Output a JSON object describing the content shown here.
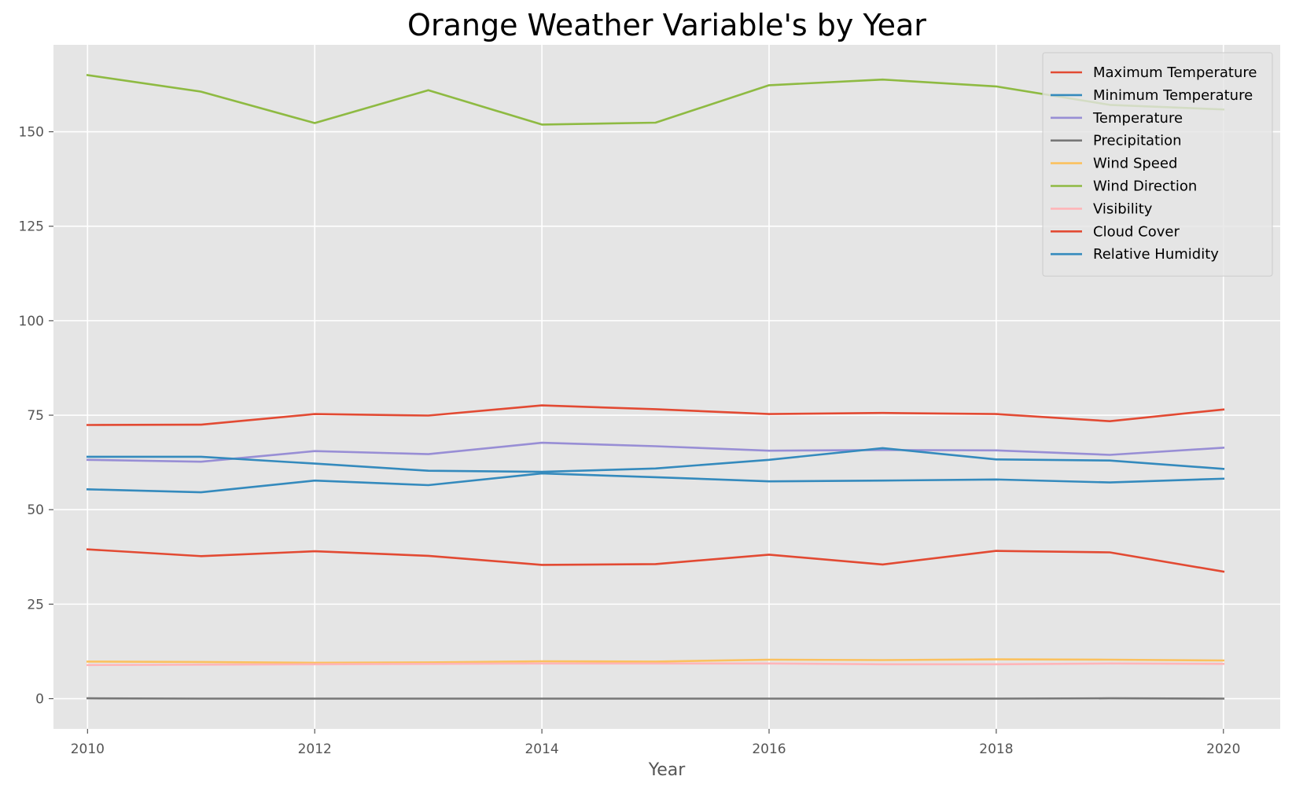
{
  "chart_data": {
    "type": "line",
    "title": "Orange Weather Variable's by Year",
    "xlabel": "Year",
    "ylabel": "",
    "x": [
      2010,
      2011,
      2012,
      2013,
      2014,
      2015,
      2016,
      2017,
      2018,
      2019,
      2020
    ],
    "xticks": [
      "2010",
      "2012",
      "2014",
      "2016",
      "2018",
      "2020"
    ],
    "yticks": [
      "0",
      "25",
      "50",
      "75",
      "100",
      "125",
      "150"
    ],
    "xlim": [
      2009.7,
      2020.5
    ],
    "ylim": [
      -8,
      173
    ],
    "grid": true,
    "legend_position": "top-right",
    "series": [
      {
        "name": "Maximum Temperature",
        "color": "#E24A33",
        "values": [
          72.4,
          72.5,
          75.3,
          74.9,
          77.6,
          76.6,
          75.3,
          75.6,
          75.3,
          73.4,
          76.5
        ]
      },
      {
        "name": "Minimum Temperature",
        "color": "#348ABD",
        "values": [
          55.4,
          54.6,
          57.7,
          56.5,
          59.6,
          58.6,
          57.5,
          57.7,
          58.0,
          57.2,
          58.2
        ]
      },
      {
        "name": "Temperature",
        "color": "#988ED5",
        "values": [
          63.2,
          62.7,
          65.5,
          64.7,
          67.7,
          66.8,
          65.6,
          65.8,
          65.7,
          64.5,
          66.4
        ]
      },
      {
        "name": "Precipitation",
        "color": "#777777",
        "values": [
          0.1,
          0.0,
          0.0,
          0.0,
          0.0,
          0.0,
          0.0,
          0.0,
          0.0,
          0.1,
          0.0
        ]
      },
      {
        "name": "Wind Speed",
        "color": "#FBC15E",
        "values": [
          9.8,
          9.7,
          9.5,
          9.6,
          9.9,
          9.8,
          10.3,
          10.2,
          10.4,
          10.3,
          10.1
        ]
      },
      {
        "name": "Wind Direction",
        "color": "#8EBA42",
        "values": [
          165.0,
          160.6,
          152.3,
          161.0,
          151.9,
          152.4,
          162.3,
          163.8,
          162.0,
          157.1,
          155.9
        ]
      },
      {
        "name": "Visibility",
        "color": "#FFB5B8",
        "values": [
          8.9,
          9.0,
          9.1,
          9.2,
          9.3,
          9.3,
          9.3,
          9.1,
          9.1,
          9.3,
          9.2
        ]
      },
      {
        "name": "Cloud Cover",
        "color": "#E24A33",
        "values": [
          39.5,
          37.7,
          39.0,
          37.8,
          35.4,
          35.6,
          38.1,
          35.5,
          39.1,
          38.7,
          33.6
        ]
      },
      {
        "name": "Relative Humidity",
        "color": "#348ABD",
        "values": [
          64.0,
          64.0,
          62.2,
          60.3,
          60.0,
          60.9,
          63.2,
          66.3,
          63.3,
          63.0,
          60.8
        ]
      }
    ]
  }
}
